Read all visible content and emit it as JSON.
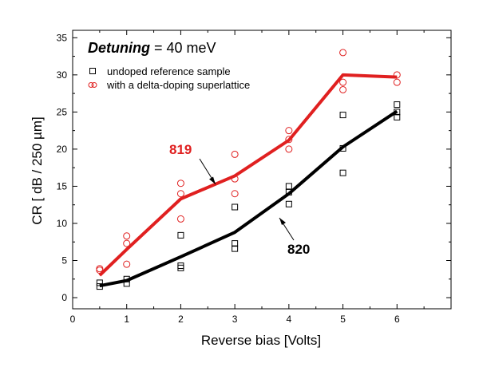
{
  "chart_data": {
    "type": "scatter",
    "xlabel": "Reverse bias [Volts]",
    "ylabel": "CR [ dB / 250 µm]",
    "xlim": [
      0,
      7
    ],
    "ylim": [
      -1.5,
      36
    ],
    "xticks": [
      0,
      1,
      2,
      3,
      4,
      5,
      6
    ],
    "yticks": [
      0,
      5,
      10,
      15,
      20,
      25,
      30,
      35
    ],
    "grid": false,
    "legend_position": "top-left",
    "title_parts": {
      "label": "Detuning",
      "value": " = 40 meV"
    },
    "series": [
      {
        "name": "undoped reference sample",
        "marker": "square",
        "color": "#000000",
        "points": [
          [
            0.5,
            1.5
          ],
          [
            0.5,
            2.0
          ],
          [
            1,
            1.9
          ],
          [
            1,
            2.5
          ],
          [
            2,
            4.0
          ],
          [
            2,
            4.3
          ],
          [
            2,
            8.4
          ],
          [
            3,
            6.6
          ],
          [
            3,
            7.3
          ],
          [
            3,
            12.2
          ],
          [
            4,
            12.6
          ],
          [
            4,
            14.2
          ],
          [
            4,
            15.0
          ],
          [
            5,
            16.8
          ],
          [
            5,
            20.1
          ],
          [
            5,
            24.6
          ],
          [
            6,
            24.3
          ],
          [
            6,
            25.0
          ],
          [
            6,
            26.0
          ]
        ],
        "fit": {
          "x": [
            0.5,
            1,
            2,
            3,
            4,
            5,
            6
          ],
          "y": [
            1.6,
            2.3,
            5.5,
            8.8,
            14.0,
            20.3,
            25.1
          ]
        },
        "annotation": "820"
      },
      {
        "name": "with a delta-doping superlattice",
        "marker": "circle",
        "color": "#e02020",
        "points": [
          [
            0.5,
            3.7
          ],
          [
            0.5,
            3.9
          ],
          [
            1,
            4.5
          ],
          [
            1,
            7.3
          ],
          [
            1,
            8.3
          ],
          [
            2,
            10.6
          ],
          [
            2,
            14.0
          ],
          [
            2,
            15.4
          ],
          [
            3,
            14.0
          ],
          [
            3,
            16.0
          ],
          [
            3,
            19.3
          ],
          [
            4,
            20.0
          ],
          [
            4,
            21.3
          ],
          [
            4,
            22.5
          ],
          [
            5,
            28.0
          ],
          [
            5,
            29.0
          ],
          [
            5,
            33.0
          ],
          [
            6,
            29.0
          ],
          [
            6,
            30.0
          ]
        ],
        "fit": {
          "x": [
            0.5,
            1,
            2,
            3,
            4,
            5,
            6
          ],
          "y": [
            3.0,
            6.5,
            13.3,
            16.4,
            21.2,
            30.0,
            29.7
          ]
        },
        "annotation": "819"
      }
    ]
  }
}
